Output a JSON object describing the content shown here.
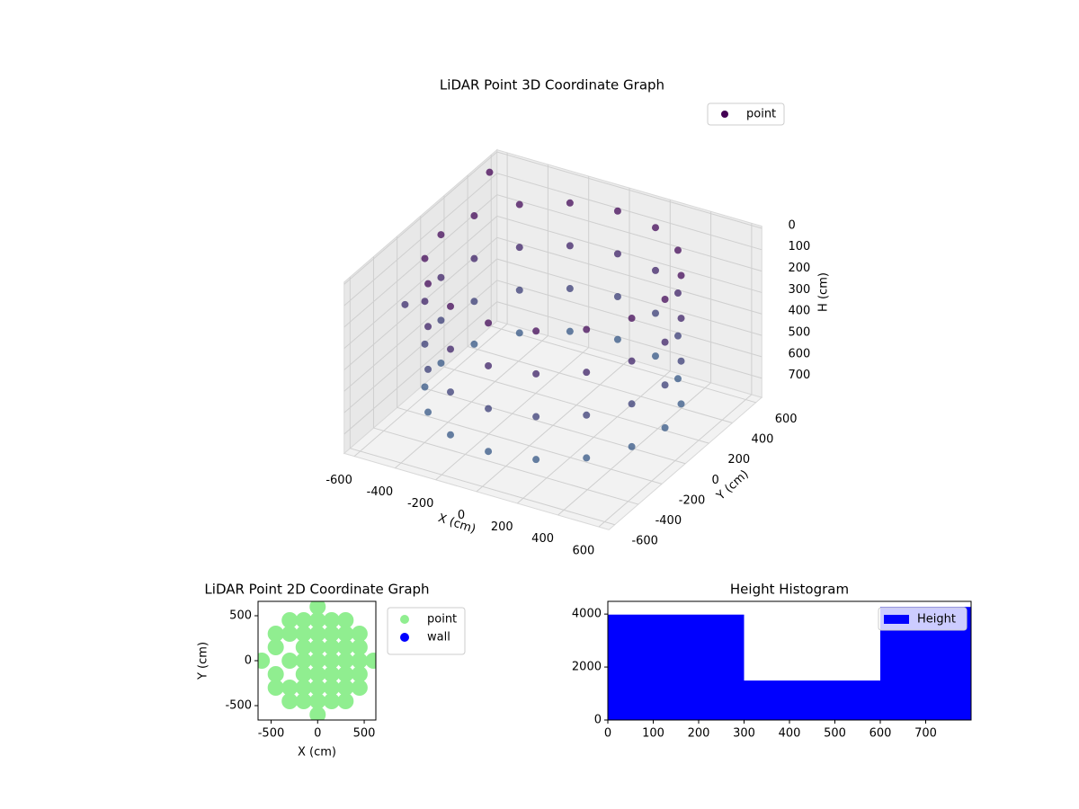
{
  "chart_data": [
    {
      "type": "scatter3d",
      "title": "LiDAR Point 3D Coordinate Graph",
      "xlabel": "X (cm)",
      "ylabel": "Y (cm)",
      "zlabel": "H (cm)",
      "xlim": [
        -650,
        650
      ],
      "ylim": [
        -650,
        650
      ],
      "zlim": [
        790,
        -10
      ],
      "xticks": [
        -600,
        -400,
        -200,
        0,
        200,
        400,
        600
      ],
      "yticks": [
        -600,
        -400,
        -200,
        0,
        200,
        400,
        600
      ],
      "zticks": [
        0,
        100,
        200,
        300,
        400,
        500,
        600,
        700
      ],
      "legend": "upper right",
      "series": [
        {
          "name": "point",
          "color": "#440154",
          "x": [
            550,
            550,
            550,
            550,
            508,
            508,
            508,
            508,
            389,
            389,
            389,
            389,
            210,
            210,
            210,
            210,
            0,
            0,
            0,
            0,
            -210,
            -210,
            -210,
            -210,
            -389,
            -389,
            -389,
            -389,
            -508,
            -508,
            -508,
            -508,
            -550,
            -550,
            -550,
            -550,
            -508,
            -508,
            -508,
            -508,
            -389,
            -389,
            -389,
            -389,
            -210,
            -210,
            -210,
            -210,
            0,
            0,
            0,
            0,
            210,
            210,
            210,
            210,
            389,
            389,
            389,
            389,
            508,
            508,
            508,
            508,
            -600,
            -640
          ],
          "y": [
            0,
            0,
            0,
            0,
            210,
            210,
            210,
            210,
            389,
            389,
            389,
            389,
            508,
            508,
            508,
            508,
            550,
            550,
            550,
            550,
            508,
            508,
            508,
            508,
            389,
            389,
            389,
            389,
            210,
            210,
            210,
            210,
            0,
            0,
            0,
            0,
            -210,
            -210,
            -210,
            -210,
            -389,
            -389,
            -389,
            -389,
            -508,
            -508,
            -508,
            -508,
            -550,
            -550,
            -550,
            -550,
            -508,
            -508,
            -508,
            -508,
            -389,
            -389,
            -389,
            -389,
            -210,
            -210,
            -210,
            -210,
            500,
            -150
          ],
          "z": [
            50,
            250,
            450,
            650,
            50,
            250,
            450,
            650,
            50,
            250,
            450,
            650,
            50,
            250,
            450,
            650,
            50,
            250,
            450,
            650,
            50,
            250,
            450,
            650,
            50,
            250,
            450,
            650,
            50,
            250,
            450,
            650,
            50,
            250,
            450,
            650,
            50,
            250,
            450,
            650,
            50,
            250,
            450,
            650,
            50,
            250,
            450,
            650,
            50,
            250,
            450,
            650,
            50,
            250,
            450,
            650,
            50,
            250,
            450,
            650,
            50,
            250,
            450,
            650,
            10,
            330
          ]
        }
      ]
    },
    {
      "type": "scatter",
      "title": "LiDAR Point 2D Coordinate Graph",
      "xlabel": "X (cm)",
      "ylabel": "Y (cm)",
      "xlim": [
        -640,
        625
      ],
      "ylim": [
        -660,
        660
      ],
      "xticks": [
        -500,
        0,
        500
      ],
      "yticks": [
        -500,
        0,
        500
      ],
      "legend": "outside right",
      "series": [
        {
          "name": "point",
          "color": "#90ee90",
          "x": [
            0,
            -300,
            -150,
            0,
            150,
            300,
            -450,
            -300,
            -150,
            0,
            150,
            300,
            450,
            -450,
            -150,
            0,
            150,
            300,
            450,
            -600,
            -300,
            -150,
            0,
            150,
            300,
            450,
            600,
            -450,
            -150,
            0,
            150,
            300,
            450,
            -450,
            -300,
            -150,
            0,
            150,
            300,
            450,
            -300,
            -150,
            0,
            150,
            300,
            0
          ],
          "y": [
            600,
            450,
            450,
            450,
            450,
            450,
            300,
            300,
            300,
            300,
            300,
            300,
            300,
            150,
            150,
            150,
            150,
            150,
            150,
            0,
            0,
            0,
            0,
            0,
            0,
            0,
            0,
            -150,
            -150,
            -150,
            -150,
            -150,
            -150,
            -300,
            -300,
            -300,
            -300,
            -300,
            -300,
            -300,
            -450,
            -450,
            -450,
            -450,
            -450,
            -600
          ]
        },
        {
          "name": "wall",
          "color": "#0000ff",
          "x": [],
          "y": []
        }
      ]
    },
    {
      "type": "histogram",
      "title": "Height Histogram",
      "bins": [
        0,
        300,
        600,
        800
      ],
      "values": [
        3980,
        1490,
        4270
      ],
      "series_name": "Height",
      "color": "#0000ff",
      "xlim": [
        0,
        800
      ],
      "ylim": [
        0,
        4480
      ],
      "xticks": [
        0,
        100,
        200,
        300,
        400,
        500,
        600,
        700
      ],
      "yticks": [
        0,
        2000,
        4000
      ],
      "legend": "upper right"
    }
  ]
}
